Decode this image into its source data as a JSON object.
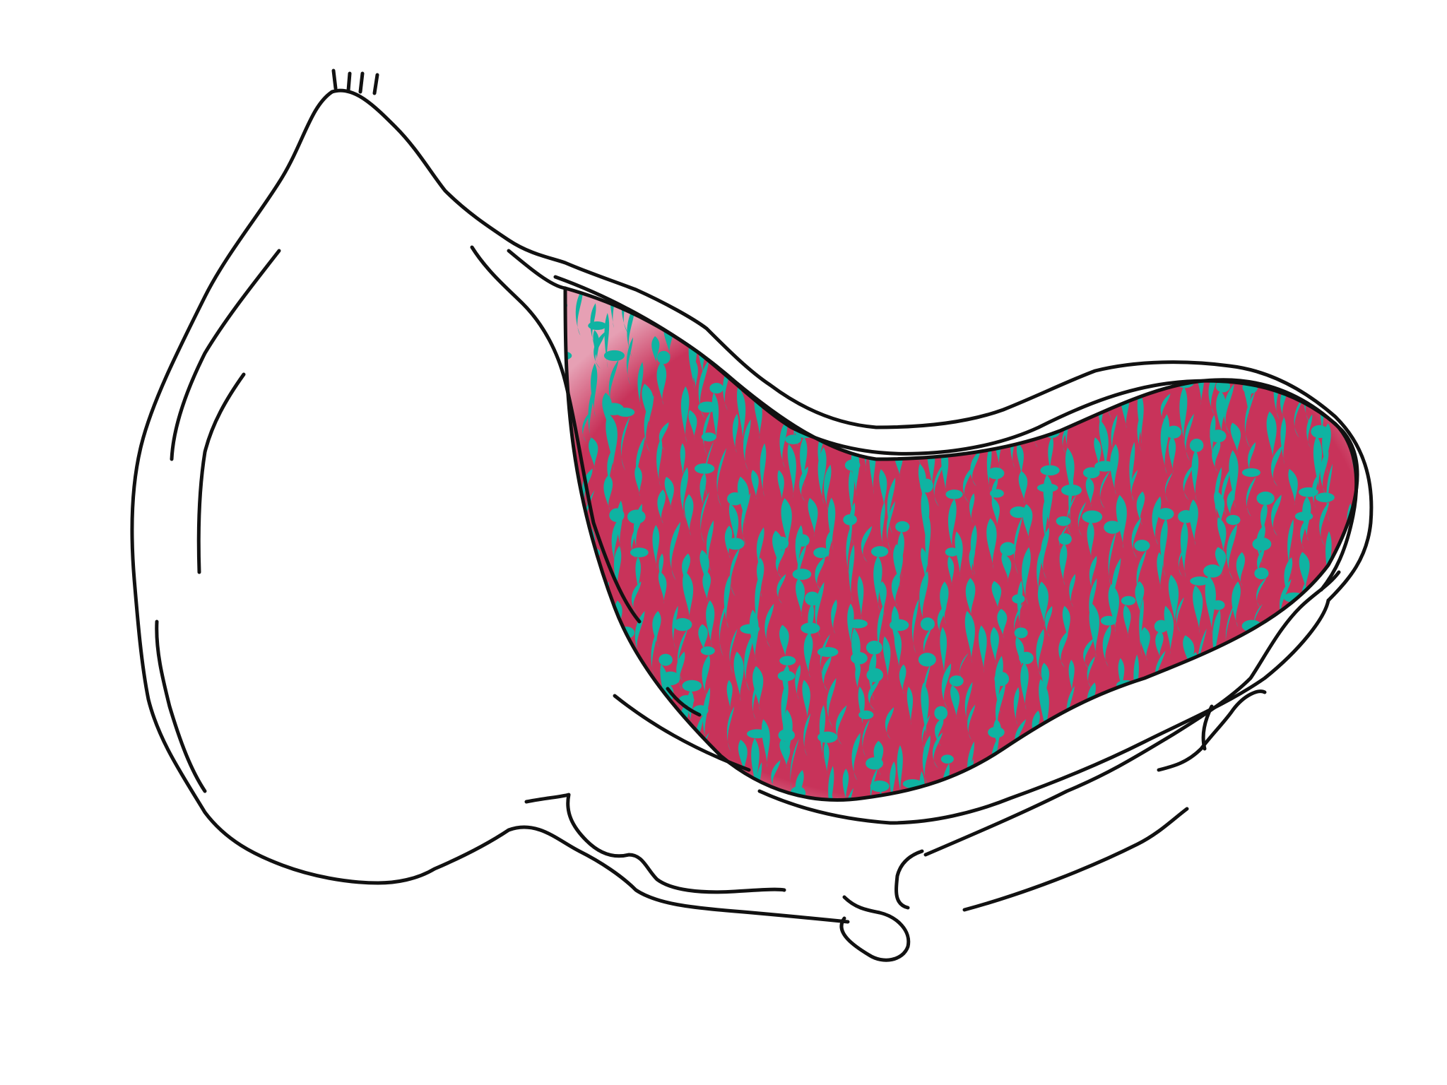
{
  "illustration": {
    "subject": "cut-fruit",
    "colors": {
      "background": "#ffffff",
      "outline": "#111111",
      "flesh": "#c8335a",
      "seeds": "#0fb3a2"
    }
  }
}
